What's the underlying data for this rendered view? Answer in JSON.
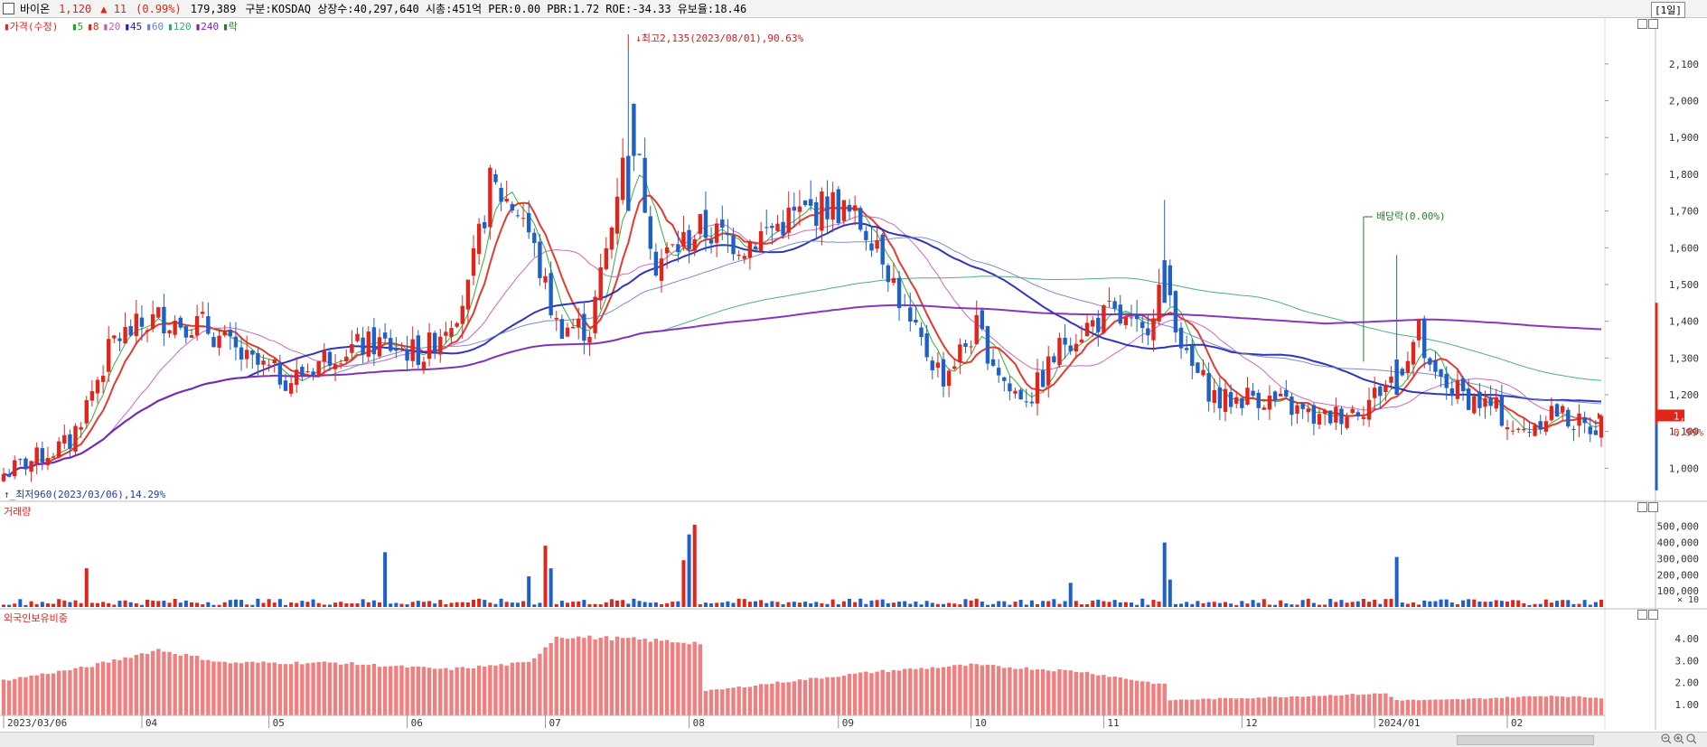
{
  "header": {
    "name": "바이온",
    "price": "1,120",
    "change": "▲ 11",
    "change_pct": "(0.99%)",
    "volume": "179,389",
    "info": "구분:KOSDAQ 상장수:40,297,640 시총:451억 PER:0.00 PBR:1.72 ROE:-34.33 유보율:18.46",
    "period": "[1일]"
  },
  "legend": {
    "price_label": "가격(수정)",
    "items": [
      {
        "label": "5",
        "color": "#22a52a"
      },
      {
        "label": "8",
        "color": "#e0251b"
      },
      {
        "label": "20",
        "color": "#c45ab8"
      },
      {
        "label": "45",
        "color": "#1a1fb8"
      },
      {
        "label": "60",
        "color": "#6a82c8"
      },
      {
        "label": "120",
        "color": "#3aa676"
      },
      {
        "label": "240",
        "color": "#7a22b8"
      },
      {
        "label": "락",
        "color": "#2a7a2a"
      }
    ]
  },
  "annotations": {
    "high": "최고2,135(2023/08/01),90.63%",
    "low": "최저960(2023/03/06),14.29%",
    "dividend": "배당락(0.00%)"
  },
  "volume_panel": {
    "title": "거래량",
    "y_ticks": [
      "500,000",
      "400,000",
      "300,000",
      "200,000",
      "100,000"
    ],
    "unit": "× 10"
  },
  "foreign_panel": {
    "title": "외국인보유비중",
    "y_ticks": [
      "4.00",
      "3.00",
      "2.00",
      "1.00"
    ]
  },
  "price_axis": {
    "current_price": "1,120",
    "current_pct": "0.99%"
  },
  "colors": {
    "up": "#e0251b",
    "down": "#1f5fc8",
    "foreign": "#f08080"
  },
  "chart_data": {
    "type": "candlestick",
    "x_tick_labels": [
      "2023/03/06",
      "04",
      "05",
      "06",
      "07",
      "08",
      "09",
      "10",
      "11",
      "12",
      "2024/01",
      "02"
    ],
    "y_ticks": [
      1000,
      1100,
      1200,
      1300,
      1400,
      1500,
      1600,
      1700,
      1800,
      1900,
      2000,
      2100
    ],
    "y_tick_labels": [
      "1,000",
      "1,100",
      "1,200",
      "1,300",
      "1,400",
      "1,500",
      "1,600",
      "1,700",
      "1,800",
      "1,900",
      "2,000",
      "2,100"
    ],
    "ylim": [
      915,
      2220
    ],
    "close_anchors": [
      [
        0,
        985
      ],
      [
        12,
        1070
      ],
      [
        20,
        1350
      ],
      [
        28,
        1410
      ],
      [
        36,
        1390
      ],
      [
        44,
        1290
      ],
      [
        52,
        1240
      ],
      [
        60,
        1320
      ],
      [
        68,
        1340
      ],
      [
        76,
        1310
      ],
      [
        84,
        1480
      ],
      [
        88,
        1770
      ],
      [
        94,
        1690
      ],
      [
        100,
        1390
      ],
      [
        106,
        1380
      ],
      [
        110,
        1660
      ],
      [
        113,
        1980
      ],
      [
        118,
        1560
      ],
      [
        126,
        1650
      ],
      [
        134,
        1610
      ],
      [
        142,
        1680
      ],
      [
        150,
        1720
      ],
      [
        158,
        1630
      ],
      [
        164,
        1380
      ],
      [
        170,
        1250
      ],
      [
        176,
        1380
      ],
      [
        182,
        1210
      ],
      [
        186,
        1200
      ],
      [
        192,
        1350
      ],
      [
        200,
        1420
      ],
      [
        206,
        1360
      ],
      [
        210,
        1530
      ],
      [
        214,
        1290
      ],
      [
        220,
        1180
      ],
      [
        226,
        1200
      ],
      [
        232,
        1170
      ],
      [
        238,
        1130
      ],
      [
        246,
        1170
      ],
      [
        252,
        1260
      ],
      [
        256,
        1370
      ],
      [
        258,
        1250
      ],
      [
        264,
        1200
      ],
      [
        270,
        1160
      ],
      [
        274,
        1090
      ],
      [
        280,
        1160
      ],
      [
        286,
        1110
      ],
      [
        289,
        1120
      ]
    ],
    "candle_count": 290,
    "special_spikes": [
      [
        113,
        2135,
        1700
      ],
      [
        210,
        1730,
        1450
      ],
      [
        252,
        1580,
        1200
      ]
    ],
    "ma_periods": [
      5,
      8,
      20,
      45,
      60,
      120,
      240
    ],
    "x_tick_indices": [
      0,
      25,
      48,
      73,
      98,
      124,
      151,
      175,
      199,
      224,
      248,
      272
    ],
    "volume_ylim": [
      0,
      560000
    ],
    "volume_spikes": [
      [
        15,
        240000
      ],
      [
        69,
        340000
      ],
      [
        95,
        190000
      ],
      [
        98,
        380000
      ],
      [
        99,
        240000
      ],
      [
        123,
        290000
      ],
      [
        124,
        450000
      ],
      [
        125,
        510000
      ],
      [
        210,
        400000
      ],
      [
        211,
        170000
      ],
      [
        252,
        310000
      ],
      [
        193,
        150000
      ]
    ],
    "foreign_ylim": [
      0.5,
      4.7
    ],
    "foreign_anchors": [
      [
        0,
        2.1
      ],
      [
        15,
        2.7
      ],
      [
        28,
        3.5
      ],
      [
        40,
        2.9
      ],
      [
        60,
        2.9
      ],
      [
        80,
        2.6
      ],
      [
        95,
        2.9
      ],
      [
        100,
        4.1
      ],
      [
        112,
        4.0
      ],
      [
        126,
        3.8
      ],
      [
        127,
        1.6
      ],
      [
        140,
        2.0
      ],
      [
        158,
        2.5
      ],
      [
        175,
        2.8
      ],
      [
        195,
        2.5
      ],
      [
        210,
        1.9
      ],
      [
        211,
        1.2
      ],
      [
        225,
        1.3
      ],
      [
        250,
        1.5
      ],
      [
        252,
        1.2
      ],
      [
        260,
        1.2
      ],
      [
        280,
        1.4
      ],
      [
        289,
        1.3
      ]
    ]
  }
}
